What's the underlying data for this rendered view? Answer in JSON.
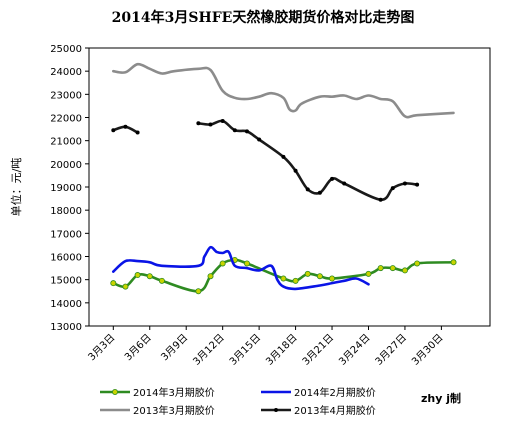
{
  "chart_data": {
    "type": "line",
    "title": "2014年3月SHFE天然橡胶期货价格对比走势图",
    "ylabel": "单位：元/吨",
    "xlabel": "",
    "ylim": [
      13000,
      25000
    ],
    "yticks": [
      13000,
      14000,
      15000,
      16000,
      17000,
      18000,
      19000,
      20000,
      21000,
      22000,
      23000,
      24000,
      25000
    ],
    "x_range": [
      1,
      34
    ],
    "x_ticks": [
      {
        "x": 3,
        "label": "3月3日"
      },
      {
        "x": 6,
        "label": "3月6日"
      },
      {
        "x": 9,
        "label": "3月9日"
      },
      {
        "x": 12,
        "label": "3月12日"
      },
      {
        "x": 15,
        "label": "3月15日"
      },
      {
        "x": 18,
        "label": "3月18日"
      },
      {
        "x": 21,
        "label": "3月21日"
      },
      {
        "x": 24,
        "label": "3月24日"
      },
      {
        "x": 27,
        "label": "3月27日"
      },
      {
        "x": 30,
        "label": "3月30日"
      }
    ],
    "grid": false,
    "legend_position": "bottom",
    "series": [
      {
        "name": "2014年3月期胶价",
        "color": "#2e8b21",
        "marker": "circle",
        "marker_color": "#c8d400",
        "points": [
          [
            3,
            14850
          ],
          [
            4,
            14700
          ],
          [
            5,
            15200
          ],
          [
            6,
            15150
          ],
          [
            7,
            14950
          ],
          [
            10,
            14500
          ],
          [
            11,
            15150
          ],
          [
            12,
            15700
          ],
          [
            13,
            15850
          ],
          [
            14,
            15700
          ],
          [
            17,
            15050
          ],
          [
            18,
            14950
          ],
          [
            19,
            15250
          ],
          [
            20,
            15150
          ],
          [
            21,
            15050
          ],
          [
            24,
            15250
          ],
          [
            25,
            15500
          ],
          [
            26,
            15500
          ],
          [
            27,
            15400
          ],
          [
            28,
            15700
          ],
          [
            31,
            15750
          ]
        ]
      },
      {
        "name": "2014年2月期胶价",
        "color": "#0a14e6",
        "marker": "none",
        "points": [
          [
            3,
            15350
          ],
          [
            4,
            15800
          ],
          [
            5,
            15800
          ],
          [
            6,
            15750
          ],
          [
            7,
            15600
          ],
          [
            10,
            15600
          ],
          [
            10.5,
            16000
          ],
          [
            11,
            16400
          ],
          [
            11.5,
            16200
          ],
          [
            12,
            16150
          ],
          [
            12.5,
            16200
          ],
          [
            13,
            15600
          ],
          [
            14,
            15500
          ],
          [
            15,
            15400
          ],
          [
            16,
            15600
          ],
          [
            16.5,
            15000
          ],
          [
            17,
            14700
          ],
          [
            18,
            14600
          ],
          [
            20,
            14750
          ],
          [
            21,
            14850
          ],
          [
            22,
            14950
          ],
          [
            23,
            15050
          ],
          [
            24,
            14800
          ]
        ]
      },
      {
        "name": "2013年3月期胶价",
        "color": "#8c8c8c",
        "marker": "none",
        "points": [
          [
            3,
            24000
          ],
          [
            4,
            23950
          ],
          [
            5,
            24300
          ],
          [
            6,
            24100
          ],
          [
            7,
            23900
          ],
          [
            8,
            24000
          ],
          [
            10,
            24100
          ],
          [
            11,
            24050
          ],
          [
            12,
            23150
          ],
          [
            13,
            22850
          ],
          [
            14,
            22800
          ],
          [
            15,
            22900
          ],
          [
            16,
            23050
          ],
          [
            17,
            22850
          ],
          [
            17.5,
            22350
          ],
          [
            18,
            22300
          ],
          [
            18.5,
            22600
          ],
          [
            20,
            22900
          ],
          [
            21,
            22900
          ],
          [
            22,
            22950
          ],
          [
            23,
            22800
          ],
          [
            24,
            22950
          ],
          [
            25,
            22800
          ],
          [
            26,
            22700
          ],
          [
            27,
            22050
          ],
          [
            28,
            22100
          ],
          [
            31,
            22200
          ]
        ]
      },
      {
        "name": "2013年4月期胶价",
        "color": "#1a1a1a",
        "marker": "dot",
        "marker_color": "#000000",
        "segments": [
          [
            [
              3,
              21450
            ],
            [
              4,
              21600
            ],
            [
              5,
              21350
            ]
          ],
          [
            [
              10,
              21750
            ],
            [
              11,
              21700
            ],
            [
              12,
              21850
            ],
            [
              13,
              21450
            ],
            [
              14,
              21400
            ],
            [
              15,
              21050
            ],
            [
              17,
              20300
            ],
            [
              18,
              19700
            ],
            [
              19,
              18900
            ],
            [
              20,
              18750
            ],
            [
              21,
              19350
            ],
            [
              22,
              19150
            ],
            [
              25,
              18450
            ],
            [
              26,
              18950
            ],
            [
              27,
              19150
            ],
            [
              28,
              19100
            ]
          ]
        ]
      }
    ],
    "annotation": "zhy j制"
  },
  "legend": [
    {
      "label": "2014年3月期胶价",
      "color": "#2e8b21",
      "marker": "circle",
      "marker_color": "#c8d400"
    },
    {
      "label": "2014年2月期胶价",
      "color": "#0a14e6",
      "marker": "none"
    },
    {
      "label": "2013年3月期胶价",
      "color": "#8c8c8c",
      "marker": "none"
    },
    {
      "label": "2013年4月期胶价",
      "color": "#1a1a1a",
      "marker": "dot",
      "marker_color": "#000000"
    }
  ]
}
